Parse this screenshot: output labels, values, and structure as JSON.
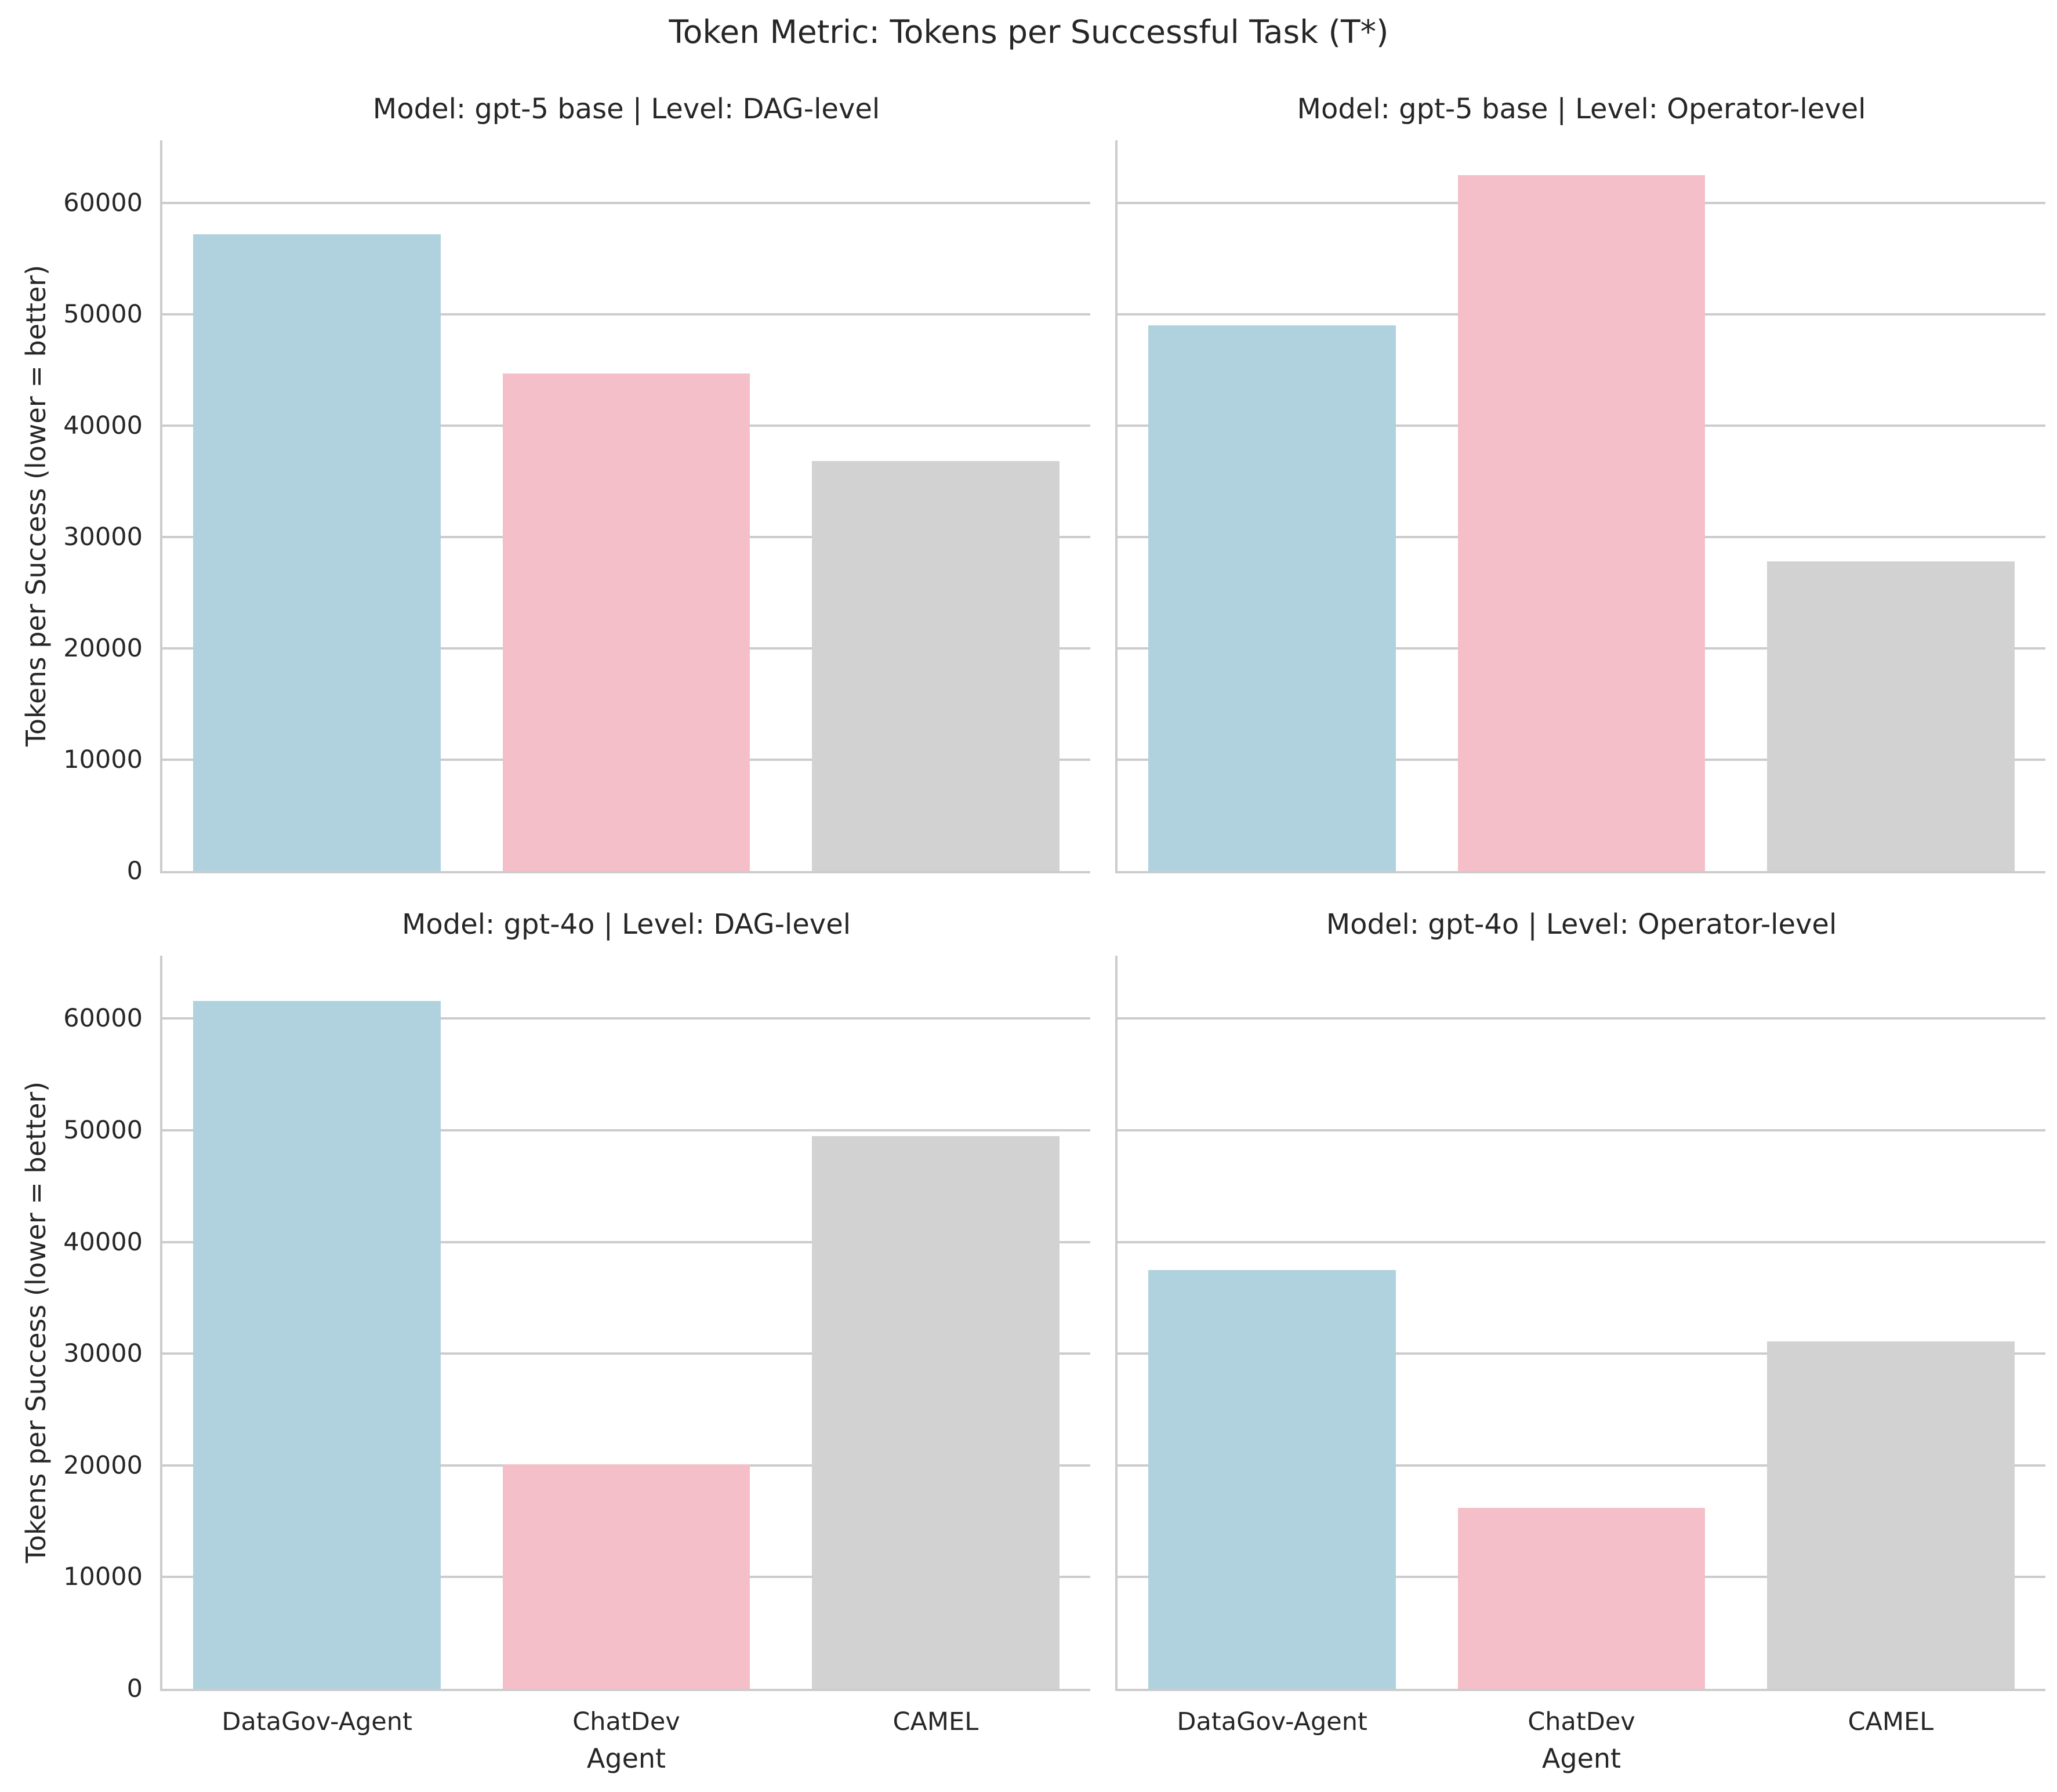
{
  "figure": {
    "title": "Token Metric: Tokens per Successful Task (T*)",
    "ylabel": "Tokens per Success (lower = better)",
    "xlabel": "Agent",
    "ytick_labels": [
      "0",
      "10000",
      "20000",
      "30000",
      "40000",
      "50000",
      "60000"
    ]
  },
  "colors": {
    "palette": [
      "#afd2de",
      "#f5bfc9",
      "#d2d2d2"
    ],
    "grid": "#cccccc",
    "spine": "#cccccc",
    "text": "#262626",
    "background": "#ffffff"
  },
  "chart_data": [
    {
      "type": "bar",
      "title": "Model: gpt-5 base | Level: DAG-level",
      "model": "gpt-5 base",
      "level": "DAG-level",
      "categories": [
        "DataGov-Agent",
        "ChatDev",
        "CAMEL"
      ],
      "values": [
        57200,
        44700,
        36800
      ],
      "xlabel": "Agent",
      "ylabel": "Tokens per Success (lower = better)",
      "ylim": [
        0,
        65625
      ],
      "yticks": [
        0,
        10000,
        20000,
        30000,
        40000,
        50000,
        60000
      ],
      "grid": "horizontal",
      "legend": "none"
    },
    {
      "type": "bar",
      "title": "Model: gpt-5 base | Level: Operator-level",
      "model": "gpt-5 base",
      "level": "Operator-level",
      "categories": [
        "DataGov-Agent",
        "ChatDev",
        "CAMEL"
      ],
      "values": [
        49000,
        62500,
        27800
      ],
      "xlabel": "Agent",
      "ylabel": "Tokens per Success (lower = better)",
      "ylim": [
        0,
        65625
      ],
      "yticks": [
        0,
        10000,
        20000,
        30000,
        40000,
        50000,
        60000
      ],
      "grid": "horizontal",
      "legend": "none"
    },
    {
      "type": "bar",
      "title": "Model: gpt-4o | Level: DAG-level",
      "model": "gpt-4o",
      "level": "DAG-level",
      "categories": [
        "DataGov-Agent",
        "ChatDev",
        "CAMEL"
      ],
      "values": [
        61600,
        20100,
        49500
      ],
      "xlabel": "Agent",
      "ylabel": "Tokens per Success (lower = better)",
      "ylim": [
        0,
        65625
      ],
      "yticks": [
        0,
        10000,
        20000,
        30000,
        40000,
        50000,
        60000
      ],
      "grid": "horizontal",
      "legend": "none"
    },
    {
      "type": "bar",
      "title": "Model: gpt-4o | Level: Operator-level",
      "model": "gpt-4o",
      "level": "Operator-level",
      "categories": [
        "DataGov-Agent",
        "ChatDev",
        "CAMEL"
      ],
      "values": [
        37500,
        16200,
        31100
      ],
      "xlabel": "Agent",
      "ylabel": "Tokens per Success (lower = better)",
      "ylim": [
        0,
        65625
      ],
      "yticks": [
        0,
        10000,
        20000,
        30000,
        40000,
        50000,
        60000
      ],
      "grid": "horizontal",
      "legend": "none"
    }
  ]
}
